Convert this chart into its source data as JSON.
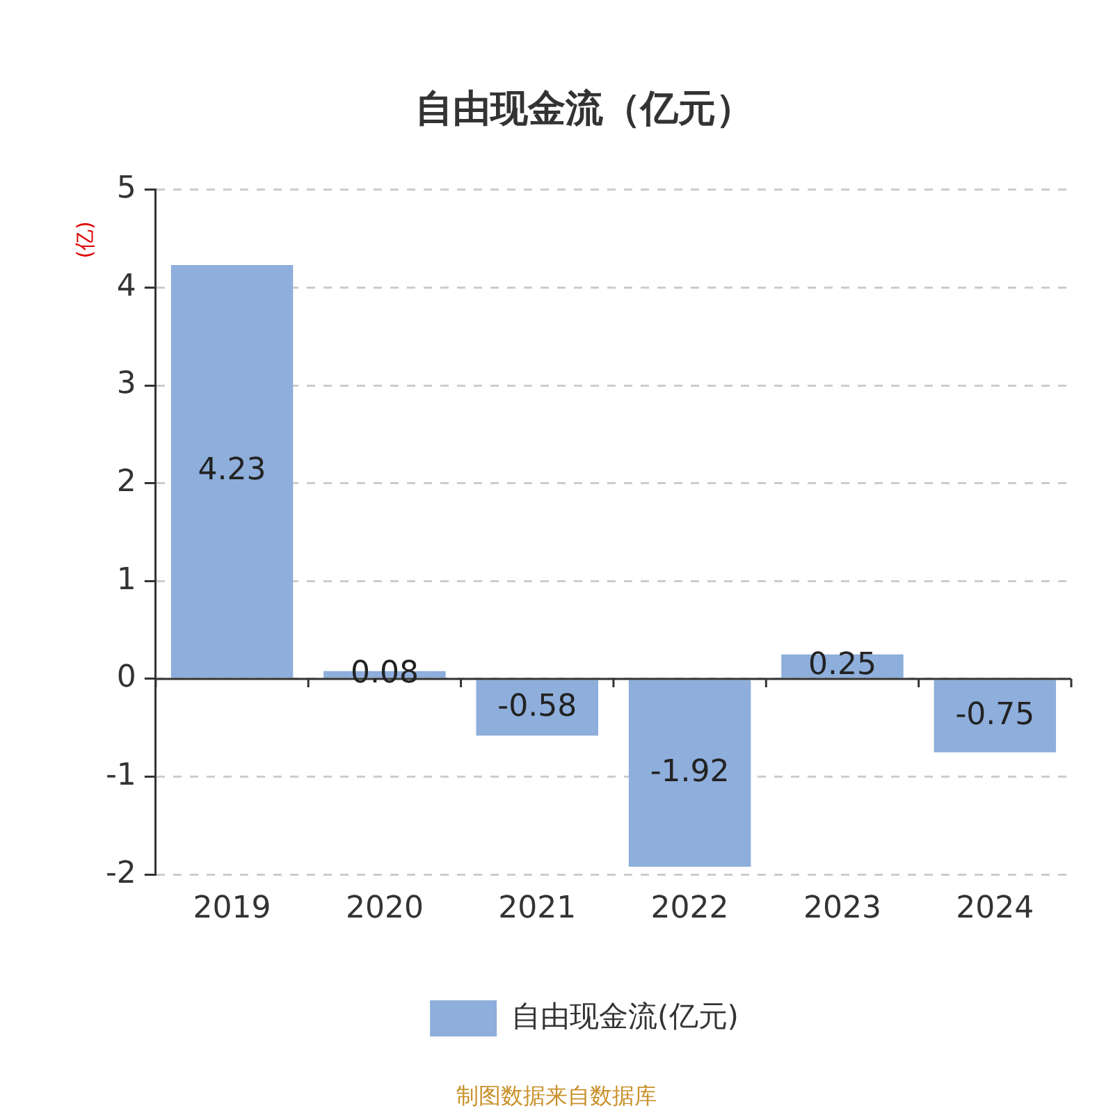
{
  "chart_data": {
    "type": "bar",
    "title": "自由现金流（亿元）",
    "ylabel": "(亿)",
    "categories": [
      "2019",
      "2020",
      "2021",
      "2022",
      "2023",
      "2024"
    ],
    "series": [
      {
        "name": "自由现金流(亿元)",
        "color": "#8eaedb",
        "values": [
          4.23,
          0.08,
          -0.58,
          -1.92,
          0.25,
          -0.75
        ]
      }
    ],
    "ylim": [
      -2,
      5
    ],
    "yticks": [
      -2,
      -1,
      0,
      1,
      2,
      3,
      4,
      5
    ],
    "grid": "y",
    "legend": "bottom",
    "data_labels": true,
    "annotations": [
      "制图数据来自数据库"
    ]
  }
}
